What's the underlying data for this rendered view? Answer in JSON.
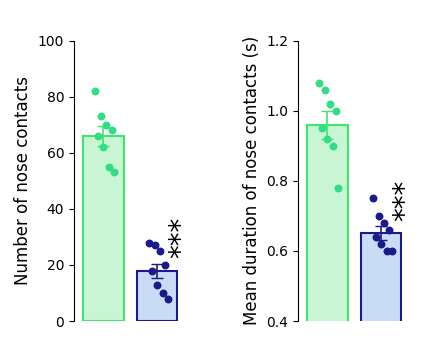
{
  "chart_data": [
    {
      "type": "bar",
      "y_label": "Number of nose contacts",
      "categories": [
        null,
        null
      ],
      "values": [
        66,
        18
      ],
      "errors": [
        3.5,
        2.5
      ],
      "points": [
        [
          82,
          73,
          70,
          68,
          66,
          62,
          55,
          53
        ],
        [
          28,
          27,
          25,
          20,
          18,
          13,
          10,
          8
        ]
      ],
      "colors": [
        "#c8f5d4",
        "#c8dcf5"
      ],
      "annotations": [
        {
          "category": 1,
          "text": "***"
        }
      ],
      "ylim": [
        0,
        100
      ],
      "yticks": [
        0,
        20,
        40,
        60,
        80,
        100
      ],
      "tick_labels": "y"
    },
    {
      "type": "bar",
      "y_label": "Mean duration of nose contacts (s)",
      "categories": [
        null,
        null
      ],
      "values": [
        0.96,
        0.65
      ],
      "errors": [
        0.04,
        0.02
      ],
      "points": [
        [
          1.08,
          1.06,
          1.02,
          1.0,
          0.95,
          0.92,
          0.9,
          0.78
        ],
        [
          0.75,
          0.7,
          0.68,
          0.66,
          0.64,
          0.62,
          0.6,
          0.6
        ]
      ],
      "colors": [
        "#c8f5d4",
        "#c8dcf5"
      ],
      "annotations": [
        {
          "category": 1,
          "text": "***"
        }
      ],
      "ylim": [
        0.4,
        1.2
      ],
      "yticks": [
        0.4,
        0.6,
        0.8,
        1.0,
        1.2
      ],
      "tick_labels": "y"
    }
  ]
}
